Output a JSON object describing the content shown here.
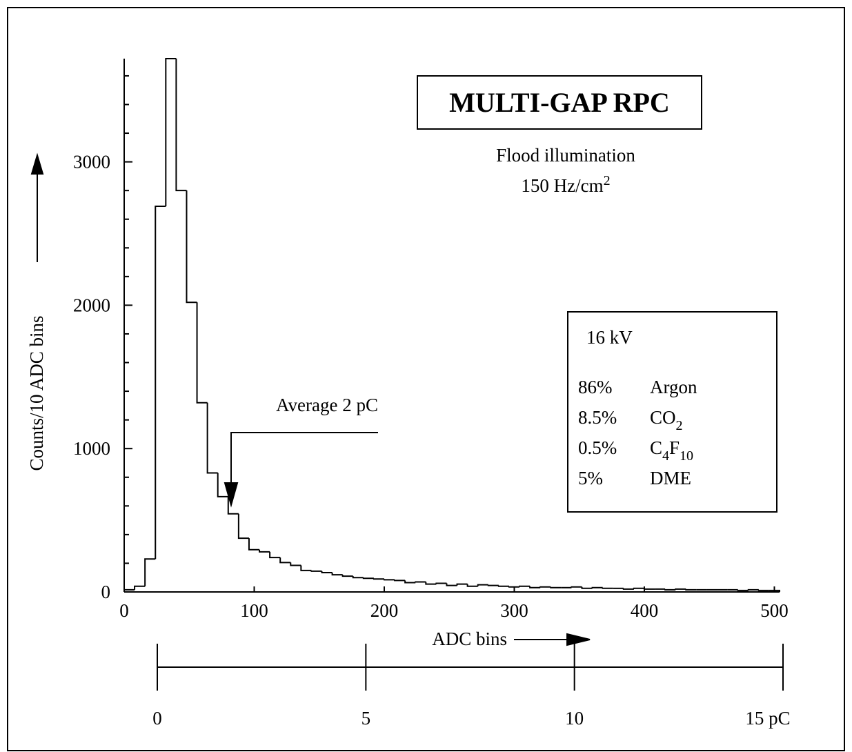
{
  "chart_data": {
    "type": "histogram",
    "title": "MULTI-GAP RPC",
    "subtitle": "Flood illumination",
    "rate": [
      "150 Hz/cm",
      "2"
    ],
    "y_label": "Counts/10 ADC bins",
    "x_label": "ADC bins",
    "annotation": "Average 2 pC",
    "voltage": "16 kV",
    "gases": [
      {
        "share": "86%",
        "name": [
          "Argon"
        ]
      },
      {
        "share": "8.5%",
        "name": [
          "CO",
          "2"
        ]
      },
      {
        "share": "0.5%",
        "name": [
          "C",
          "4",
          "F",
          "10"
        ]
      },
      {
        "share": "5%",
        "name": [
          "DME"
        ]
      }
    ],
    "bins": [
      0,
      8,
      16,
      24,
      32,
      40,
      48,
      56,
      64,
      72,
      80,
      88,
      96,
      104,
      112,
      120,
      128,
      136,
      144,
      152,
      160,
      168,
      176,
      184,
      192,
      200,
      208,
      216,
      224,
      232,
      240,
      248,
      256,
      264,
      272,
      280,
      288,
      296,
      304,
      312,
      320,
      328,
      336,
      344,
      352,
      360,
      368,
      376,
      384,
      392,
      400,
      408,
      416,
      424,
      432,
      440,
      448,
      456,
      464,
      472,
      480,
      488,
      496,
      504
    ],
    "values": [
      15,
      40,
      230,
      2690,
      3720,
      2800,
      2020,
      1320,
      830,
      665,
      545,
      375,
      295,
      280,
      240,
      205,
      185,
      150,
      145,
      135,
      120,
      110,
      100,
      95,
      90,
      85,
      80,
      65,
      70,
      55,
      60,
      45,
      55,
      40,
      50,
      45,
      40,
      35,
      40,
      30,
      35,
      30,
      30,
      35,
      25,
      30,
      25,
      25,
      20,
      25,
      20,
      20,
      15,
      20,
      15,
      15,
      15,
      15,
      15,
      10,
      15,
      10,
      10
    ],
    "color": "#000000",
    "xlim": [
      0,
      504
    ],
    "xticks": [
      0,
      100,
      200,
      300,
      400,
      500
    ],
    "ylim": [
      0,
      3720
    ],
    "yticks": [
      0,
      1000,
      2000,
      3000
    ],
    "yminorticks": [
      200,
      400,
      600,
      800,
      1200,
      1400,
      1600,
      1800,
      2200,
      2400,
      2600,
      2800,
      3200,
      3400,
      3600
    ],
    "x2lim": [
      0,
      15
    ],
    "x2ticks": [
      0,
      5,
      10,
      {
        "value": 15,
        "label": "15 pC"
      }
    ]
  }
}
